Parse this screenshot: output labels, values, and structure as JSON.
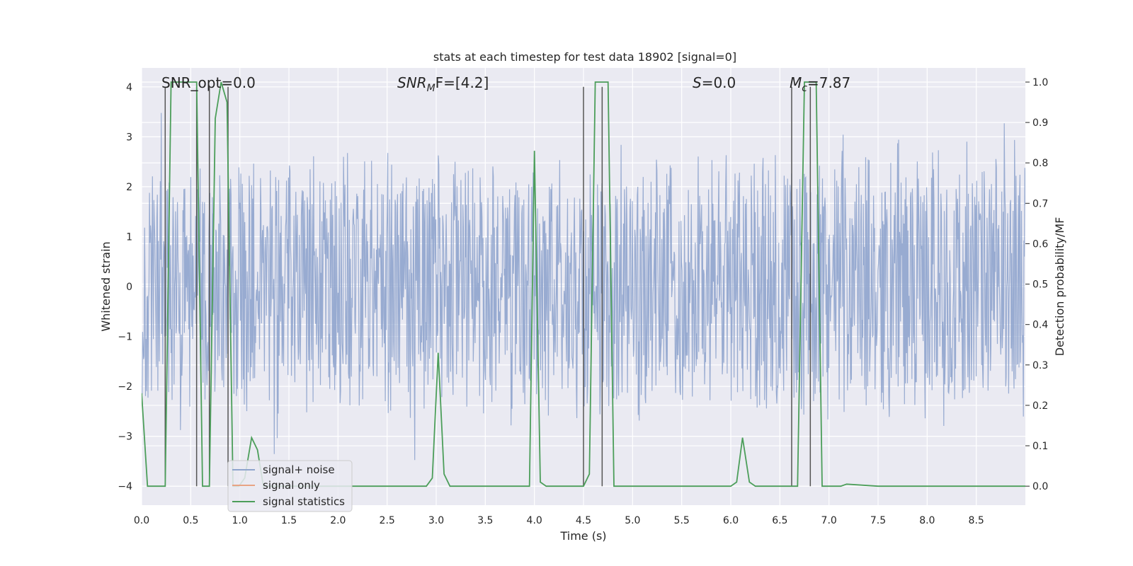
{
  "chart_data": {
    "type": "line",
    "title": "stats at each timestep for test data 18902 [signal=0]",
    "xlabel": "Time (s)",
    "ylabel_left": "Whitened strain",
    "ylabel_right": "Detection probability/MF",
    "xlim": [
      0,
      9.0
    ],
    "ylim_left": [
      -4.38,
      4.38
    ],
    "ylim_right": [
      -0.047,
      1.035
    ],
    "x_ticks": [
      "0.0",
      "0.5",
      "1.0",
      "1.5",
      "2.0",
      "2.5",
      "3.0",
      "3.5",
      "4.0",
      "4.5",
      "5.0",
      "5.5",
      "6.0",
      "6.5",
      "7.0",
      "7.5",
      "8.0",
      "8.5"
    ],
    "y_left_ticks": [
      "4",
      "3",
      "2",
      "1",
      "0",
      "−1",
      "−2",
      "−3",
      "−4"
    ],
    "y_right_ticks": [
      "1.0",
      "0.9",
      "0.8",
      "0.7",
      "0.6",
      "0.5",
      "0.4",
      "0.3",
      "0.2",
      "0.1",
      "0.0"
    ],
    "grid": true,
    "legend": {
      "location": "lower-left",
      "entries": [
        "signal+ noise",
        "signal only",
        "signal statistics"
      ]
    },
    "annotations": {
      "snr_opt": "SNR_opt=0.0",
      "snr_mf_base": "SNR",
      "snr_mf_sub": "M",
      "snr_mf_rest": "F=[4.2]",
      "s_stat": "S",
      "s_stat_rest": "=0.0",
      "mc_base": "M",
      "mc_sub": "c",
      "mc_rest": "=7.87"
    },
    "series": [
      {
        "name": "signal+ noise",
        "color": "#8fa4cd",
        "description": "whitened strain noise, approx. uniform amplitude ±2.5 with spikes up to ±3.8"
      },
      {
        "name": "signal only",
        "color": "#e8a384",
        "x": [],
        "y": []
      },
      {
        "name": "signal statistics",
        "color": "#4c9e5a",
        "x": [
          0.0,
          0.06,
          0.13,
          0.2,
          0.24,
          0.3,
          0.37,
          0.44,
          0.5,
          0.56,
          0.62,
          0.69,
          0.75,
          0.81,
          0.87,
          0.93,
          0.99,
          1.05,
          1.12,
          1.18,
          1.24,
          1.3,
          1.5,
          2.0,
          2.5,
          2.9,
          2.96,
          3.02,
          3.08,
          3.14,
          3.5,
          3.95,
          4.0,
          4.06,
          4.12,
          4.5,
          4.56,
          4.62,
          4.68,
          4.75,
          4.81,
          5.0,
          5.5,
          6.0,
          6.06,
          6.12,
          6.19,
          6.25,
          6.5,
          6.62,
          6.68,
          6.75,
          6.81,
          6.87,
          6.93,
          7.0,
          7.12,
          7.18,
          7.5,
          8.0,
          8.5,
          9.0
        ],
        "y": [
          0.23,
          0.0,
          0.0,
          0.0,
          0.0,
          1.0,
          1.0,
          1.0,
          1.0,
          1.0,
          0.0,
          0.0,
          0.91,
          1.0,
          0.95,
          0.0,
          0.0,
          0.02,
          0.12,
          0.09,
          0.0,
          0.0,
          0.0,
          0.0,
          0.0,
          0.0,
          0.02,
          0.33,
          0.03,
          0.0,
          0.0,
          0.0,
          0.83,
          0.01,
          0.0,
          0.0,
          0.03,
          1.0,
          1.0,
          1.0,
          0.0,
          0.0,
          0.0,
          0.0,
          0.01,
          0.12,
          0.01,
          0.0,
          0.0,
          0.0,
          0.0,
          1.0,
          1.0,
          1.0,
          0.0,
          0.0,
          0.0,
          0.005,
          0.0,
          0.0,
          0.0,
          0.0
        ]
      }
    ],
    "vertical_markers": [
      0.24,
      0.56,
      0.69,
      0.88,
      4.5,
      4.69,
      6.62,
      6.81
    ]
  }
}
